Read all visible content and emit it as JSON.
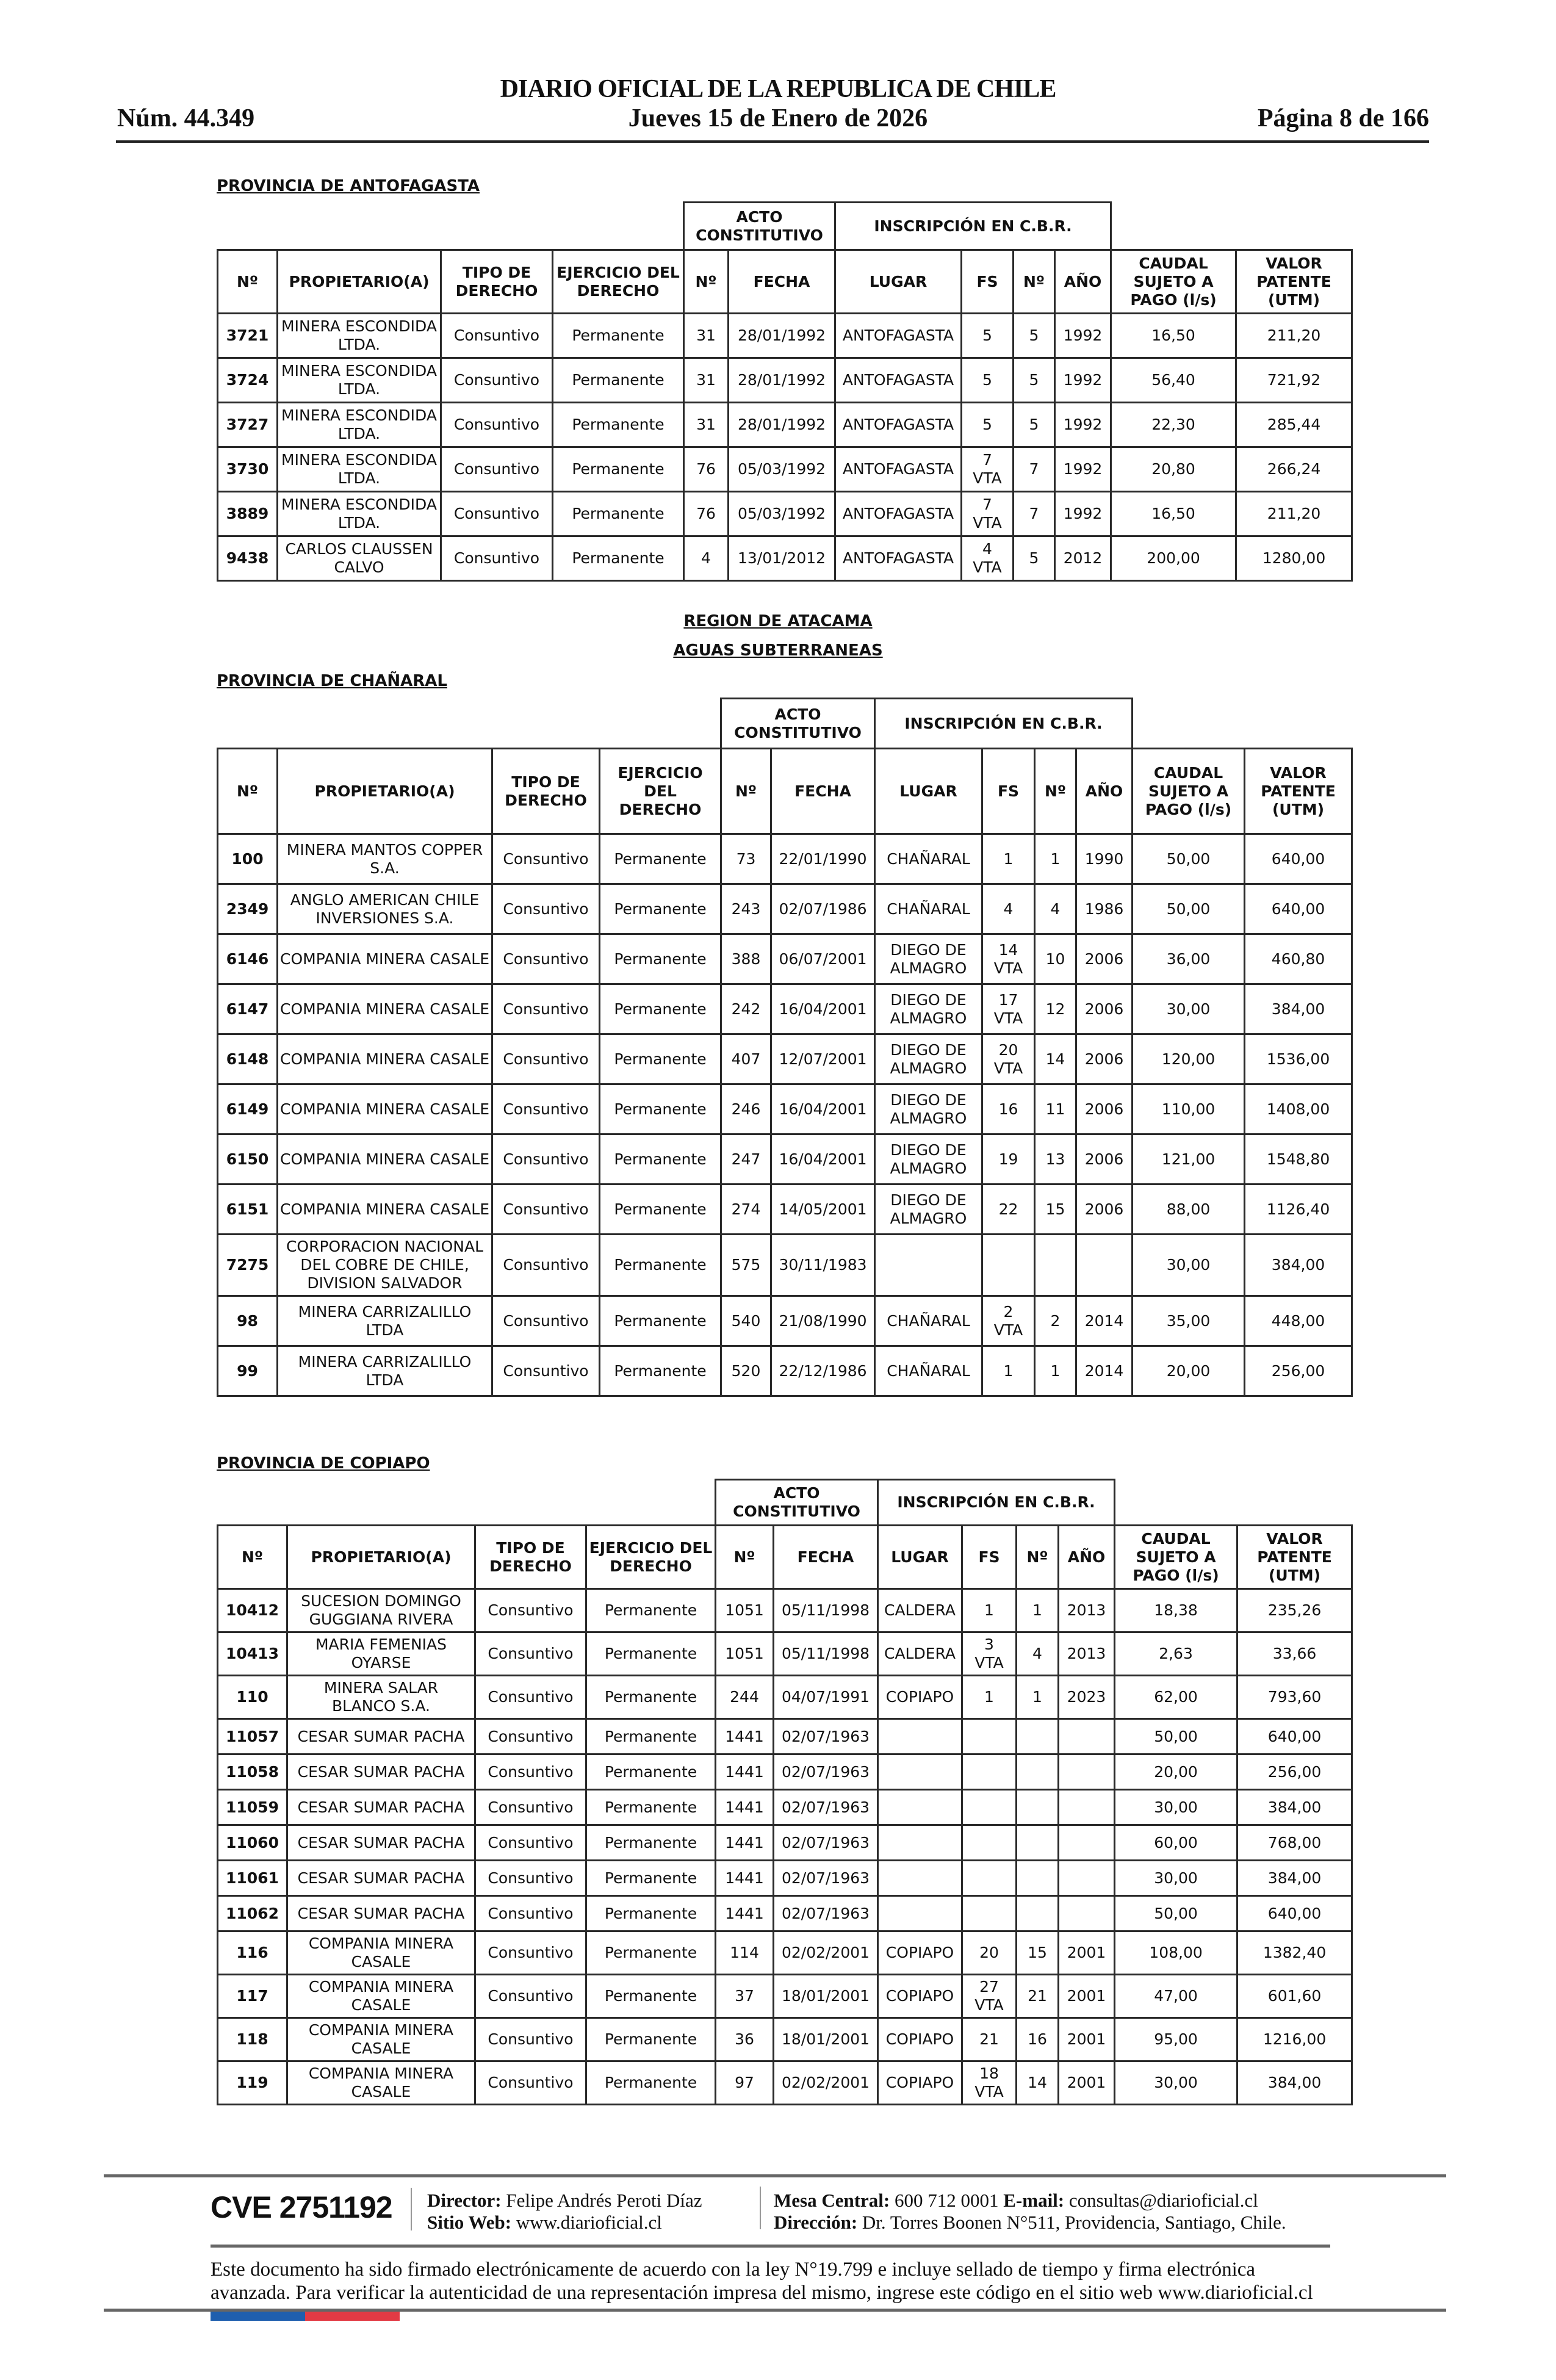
{
  "header": {
    "title": "DIARIO OFICIAL DE LA REPUBLICA DE CHILE",
    "number": "Núm. 44.349",
    "date": "Jueves 15 de Enero de 2026",
    "page": "Página 8 de 166"
  },
  "columns": {
    "group_acto": "ACTO CONSTITUTIVO",
    "group_inscripcion": "INSCRIPCIÓN EN C.B.R.",
    "t1": [
      "Nº",
      "PROPIETARIO(A)",
      "TIPO DE DERECHO",
      "EJERCICIO DEL DERECHO",
      "Nº",
      "FECHA",
      "LUGAR",
      "FS",
      "Nº",
      "AÑO",
      "CAUDAL SUJETO A PAGO (l/s)",
      "VALOR PATENTE (UTM)"
    ],
    "t2": [
      "Nº",
      "PROPIETARIO(A)",
      "TIPO DE DERECHO",
      "EJERCICIO DEL DERECHO",
      "Nº",
      "FECHA",
      "LUGAR",
      "FS",
      "Nº",
      "AÑO",
      "CAUDAL SUJETO A PAGO (l/s)",
      "VALOR PATENTE (UTM)"
    ],
    "t3": [
      "Nº",
      "PROPIETARIO(A)",
      "TIPO DE DERECHO",
      "EJERCICIO DEL DERECHO",
      "Nº",
      "FECHA",
      "LUGAR",
      "FS",
      "Nº",
      "AÑO",
      "CAUDAL SUJETO A PAGO (l/s)",
      "VALOR PATENTE (UTM)"
    ]
  },
  "sections": {
    "antofagasta": {
      "title": "PROVINCIA DE ANTOFAGASTA",
      "rows": [
        [
          "3721",
          "MINERA ESCONDIDA LTDA.",
          "Consuntivo",
          "Permanente",
          "31",
          "28/01/1992",
          "ANTOFAGASTA",
          "5",
          "5",
          "1992",
          "16,50",
          "211,20"
        ],
        [
          "3724",
          "MINERA ESCONDIDA LTDA.",
          "Consuntivo",
          "Permanente",
          "31",
          "28/01/1992",
          "ANTOFAGASTA",
          "5",
          "5",
          "1992",
          "56,40",
          "721,92"
        ],
        [
          "3727",
          "MINERA ESCONDIDA LTDA.",
          "Consuntivo",
          "Permanente",
          "31",
          "28/01/1992",
          "ANTOFAGASTA",
          "5",
          "5",
          "1992",
          "22,30",
          "285,44"
        ],
        [
          "3730",
          "MINERA ESCONDIDA LTDA.",
          "Consuntivo",
          "Permanente",
          "76",
          "05/03/1992",
          "ANTOFAGASTA",
          "7\nVTA",
          "7",
          "1992",
          "20,80",
          "266,24"
        ],
        [
          "3889",
          "MINERA ESCONDIDA LTDA.",
          "Consuntivo",
          "Permanente",
          "76",
          "05/03/1992",
          "ANTOFAGASTA",
          "7\nVTA",
          "7",
          "1992",
          "16,50",
          "211,20"
        ],
        [
          "9438",
          "CARLOS CLAUSSEN CALVO",
          "Consuntivo",
          "Permanente",
          "4",
          "13/01/2012",
          "ANTOFAGASTA",
          "4\nVTA",
          "5",
          "2012",
          "200,00",
          "1280,00"
        ]
      ]
    },
    "region": "REGION DE ATACAMA",
    "aguas": "AGUAS SUBTERRANEAS",
    "chanaral": {
      "title": "PROVINCIA DE CHAÑARAL",
      "rows": [
        [
          "100",
          "MINERA MANTOS COPPER S.A.",
          "Consuntivo",
          "Permanente",
          "73",
          "22/01/1990",
          "CHAÑARAL",
          "1",
          "1",
          "1990",
          "50,00",
          "640,00"
        ],
        [
          "2349",
          "ANGLO AMERICAN CHILE INVERSIONES S.A.",
          "Consuntivo",
          "Permanente",
          "243",
          "02/07/1986",
          "CHAÑARAL",
          "4",
          "4",
          "1986",
          "50,00",
          "640,00"
        ],
        [
          "6146",
          "COMPANIA MINERA CASALE",
          "Consuntivo",
          "Permanente",
          "388",
          "06/07/2001",
          "DIEGO DE ALMAGRO",
          "14\nVTA",
          "10",
          "2006",
          "36,00",
          "460,80"
        ],
        [
          "6147",
          "COMPANIA MINERA CASALE",
          "Consuntivo",
          "Permanente",
          "242",
          "16/04/2001",
          "DIEGO DE ALMAGRO",
          "17\nVTA",
          "12",
          "2006",
          "30,00",
          "384,00"
        ],
        [
          "6148",
          "COMPANIA MINERA CASALE",
          "Consuntivo",
          "Permanente",
          "407",
          "12/07/2001",
          "DIEGO DE ALMAGRO",
          "20\nVTA",
          "14",
          "2006",
          "120,00",
          "1536,00"
        ],
        [
          "6149",
          "COMPANIA MINERA CASALE",
          "Consuntivo",
          "Permanente",
          "246",
          "16/04/2001",
          "DIEGO DE ALMAGRO",
          "16",
          "11",
          "2006",
          "110,00",
          "1408,00"
        ],
        [
          "6150",
          "COMPANIA MINERA CASALE",
          "Consuntivo",
          "Permanente",
          "247",
          "16/04/2001",
          "DIEGO DE ALMAGRO",
          "19",
          "13",
          "2006",
          "121,00",
          "1548,80"
        ],
        [
          "6151",
          "COMPANIA MINERA CASALE",
          "Consuntivo",
          "Permanente",
          "274",
          "14/05/2001",
          "DIEGO DE ALMAGRO",
          "22",
          "15",
          "2006",
          "88,00",
          "1126,40"
        ],
        [
          "7275",
          "CORPORACION NACIONAL DEL COBRE DE CHILE, DIVISION SALVADOR",
          "Consuntivo",
          "Permanente",
          "575",
          "30/11/1983",
          "",
          "",
          "",
          "",
          "30,00",
          "384,00"
        ],
        [
          "98",
          "MINERA CARRIZALILLO LTDA",
          "Consuntivo",
          "Permanente",
          "540",
          "21/08/1990",
          "CHAÑARAL",
          "2\nVTA",
          "2",
          "2014",
          "35,00",
          "448,00"
        ],
        [
          "99",
          "MINERA CARRIZALILLO LTDA",
          "Consuntivo",
          "Permanente",
          "520",
          "22/12/1986",
          "CHAÑARAL",
          "1",
          "1",
          "2014",
          "20,00",
          "256,00"
        ]
      ]
    },
    "copiapo": {
      "title": "PROVINCIA DE COPIAPO",
      "rows": [
        [
          "10412",
          "SUCESION DOMINGO GUGGIANA RIVERA",
          "Consuntivo",
          "Permanente",
          "1051",
          "05/11/1998",
          "CALDERA",
          "1",
          "1",
          "2013",
          "18,38",
          "235,26"
        ],
        [
          "10413",
          "MARIA FEMENIAS OYARSE",
          "Consuntivo",
          "Permanente",
          "1051",
          "05/11/1998",
          "CALDERA",
          "3\nVTA",
          "4",
          "2013",
          "2,63",
          "33,66"
        ],
        [
          "110",
          "MINERA SALAR BLANCO S.A.",
          "Consuntivo",
          "Permanente",
          "244",
          "04/07/1991",
          "COPIAPO",
          "1",
          "1",
          "2023",
          "62,00",
          "793,60"
        ],
        [
          "11057",
          "CESAR SUMAR PACHA",
          "Consuntivo",
          "Permanente",
          "1441",
          "02/07/1963",
          "",
          "",
          "",
          "",
          "50,00",
          "640,00"
        ],
        [
          "11058",
          "CESAR SUMAR PACHA",
          "Consuntivo",
          "Permanente",
          "1441",
          "02/07/1963",
          "",
          "",
          "",
          "",
          "20,00",
          "256,00"
        ],
        [
          "11059",
          "CESAR SUMAR PACHA",
          "Consuntivo",
          "Permanente",
          "1441",
          "02/07/1963",
          "",
          "",
          "",
          "",
          "30,00",
          "384,00"
        ],
        [
          "11060",
          "CESAR SUMAR PACHA",
          "Consuntivo",
          "Permanente",
          "1441",
          "02/07/1963",
          "",
          "",
          "",
          "",
          "60,00",
          "768,00"
        ],
        [
          "11061",
          "CESAR SUMAR PACHA",
          "Consuntivo",
          "Permanente",
          "1441",
          "02/07/1963",
          "",
          "",
          "",
          "",
          "30,00",
          "384,00"
        ],
        [
          "11062",
          "CESAR SUMAR PACHA",
          "Consuntivo",
          "Permanente",
          "1441",
          "02/07/1963",
          "",
          "",
          "",
          "",
          "50,00",
          "640,00"
        ],
        [
          "116",
          "COMPANIA MINERA CASALE",
          "Consuntivo",
          "Permanente",
          "114",
          "02/02/2001",
          "COPIAPO",
          "20",
          "15",
          "2001",
          "108,00",
          "1382,40"
        ],
        [
          "117",
          "COMPANIA MINERA CASALE",
          "Consuntivo",
          "Permanente",
          "37",
          "18/01/2001",
          "COPIAPO",
          "27\nVTA",
          "21",
          "2001",
          "47,00",
          "601,60"
        ],
        [
          "118",
          "COMPANIA MINERA CASALE",
          "Consuntivo",
          "Permanente",
          "36",
          "18/01/2001",
          "COPIAPO",
          "21",
          "16",
          "2001",
          "95,00",
          "1216,00"
        ],
        [
          "119",
          "COMPANIA MINERA CASALE",
          "Consuntivo",
          "Permanente",
          "97",
          "02/02/2001",
          "COPIAPO",
          "18\nVTA",
          "14",
          "2001",
          "30,00",
          "384,00"
        ]
      ]
    }
  },
  "footer": {
    "cve": "CVE 2751192",
    "director_label": "Director:",
    "director": "Felipe Andrés Peroti Díaz",
    "web_label": "Sitio Web:",
    "web": "www.diarioficial.cl",
    "mesa_label": "Mesa Central:",
    "mesa": "600 712 0001",
    "email_label": "E-mail:",
    "email": "consultas@diarioficial.cl",
    "address_label": "Dirección:",
    "address": "Dr. Torres Boonen N°511, Providencia, Santiago, Chile.",
    "legal": "Este documento ha sido firmado electrónicamente de acuerdo con la ley N°19.799 e incluye sellado de tiempo y firma electrónica avanzada. Para verificar la autenticidad de una representación impresa del mismo, ingrese este código en el sitio web www.diarioficial.cl",
    "flag_colors": [
      "#1f5fae",
      "#e23a44"
    ]
  }
}
